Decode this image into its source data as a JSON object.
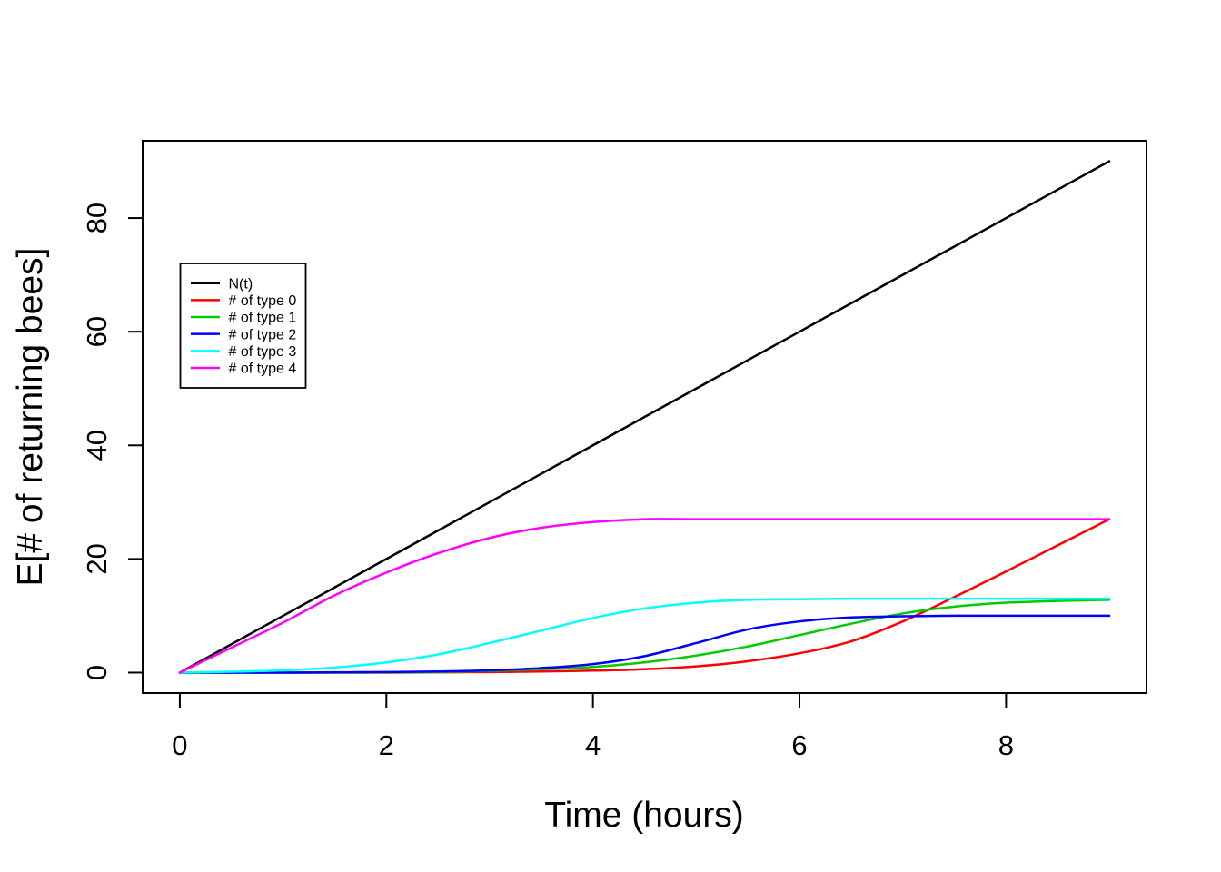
{
  "chart_data": {
    "type": "line",
    "title": "",
    "xlabel": "Time (hours)",
    "ylabel": "E[# of returning bees]",
    "x": [
      0,
      0.5,
      1,
      1.5,
      2,
      2.5,
      3,
      3.5,
      4,
      4.5,
      5,
      5.5,
      6,
      6.5,
      7,
      7.5,
      8,
      8.5,
      9
    ],
    "xlim": [
      0,
      9
    ],
    "ylim": [
      0,
      90
    ],
    "xticks": [
      0,
      2,
      4,
      6,
      8
    ],
    "yticks": [
      0,
      20,
      40,
      60,
      80
    ],
    "grid": false,
    "axis_padding_frac": 0.04,
    "legend_position": "upper-left",
    "background_color": "#ffffff",
    "axis_color": "#000000",
    "series": [
      {
        "name": "N(t)",
        "color": "#000000",
        "values": [
          0,
          5,
          10,
          15,
          20,
          25,
          30,
          35,
          40,
          45,
          50,
          55,
          60,
          65,
          70,
          75,
          80,
          85,
          90
        ]
      },
      {
        "name": "# of type 0",
        "color": "#ff0000",
        "values": [
          0,
          0,
          0,
          0,
          0,
          0.05,
          0.1,
          0.2,
          0.35,
          0.6,
          1.1,
          2,
          3.4,
          5.5,
          9,
          13.3,
          17.8,
          22.4,
          27
        ]
      },
      {
        "name": "# of type 1",
        "color": "#00cc00",
        "values": [
          0,
          0,
          0,
          0,
          0.05,
          0.1,
          0.3,
          0.6,
          1,
          1.8,
          3,
          4.6,
          6.6,
          8.6,
          10.4,
          11.6,
          12.3,
          12.6,
          12.8
        ]
      },
      {
        "name": "# of type 2",
        "color": "#0000ff",
        "values": [
          0,
          0,
          0,
          0.05,
          0.1,
          0.2,
          0.4,
          0.8,
          1.5,
          2.9,
          5.2,
          7.6,
          9,
          9.7,
          9.9,
          10,
          10,
          10,
          10
        ]
      },
      {
        "name": "# of type 3",
        "color": "#00ffff",
        "values": [
          0,
          0.15,
          0.4,
          0.9,
          1.8,
          3.2,
          5.2,
          7.4,
          9.6,
          11.3,
          12.3,
          12.8,
          12.9,
          13,
          13,
          13,
          13,
          13,
          13
        ]
      },
      {
        "name": "# of type 4",
        "color": "#ff00ff",
        "values": [
          0,
          4.4,
          8.8,
          13.6,
          17.6,
          21,
          23.7,
          25.5,
          26.5,
          27,
          27,
          27,
          27,
          27,
          27,
          27,
          27,
          27,
          27
        ]
      }
    ]
  }
}
